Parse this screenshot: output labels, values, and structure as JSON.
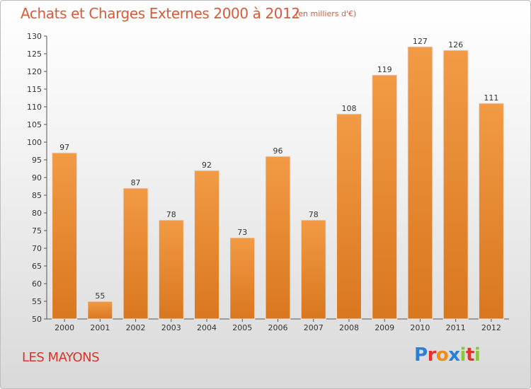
{
  "header": {
    "title": "Achats et Charges Externes 2000 à 2012",
    "subtitle": "(en milliers d'€)"
  },
  "footer": {
    "place": "LES MAYONS",
    "logo": "Proxiti"
  },
  "logo_letters": [
    {
      "char": "P",
      "color": "#2b7fd4"
    },
    {
      "char": "r",
      "color": "#e2342e"
    },
    {
      "char": "o",
      "color": "#f08b16"
    },
    {
      "char": "x",
      "color": "#2b7fd4"
    },
    {
      "char": "i",
      "color": "#8cc43f"
    },
    {
      "char": "t",
      "color": "#e2342e"
    },
    {
      "char": "i",
      "color": "#8cc43f"
    }
  ],
  "colors": {
    "bar": "#f29a45",
    "bar_dark": "#d9771f",
    "title": "#d85a3a",
    "place": "#d0392b"
  },
  "chart_data": {
    "type": "bar",
    "title": "Achats et Charges Externes 2000 à 2012",
    "categories": [
      "2000",
      "2001",
      "2002",
      "2003",
      "2004",
      "2005",
      "2006",
      "2007",
      "2008",
      "2009",
      "2010",
      "2011",
      "2012"
    ],
    "values": [
      97,
      55,
      87,
      78,
      92,
      73,
      96,
      78,
      108,
      119,
      127,
      126,
      111
    ],
    "ylim": [
      50,
      130
    ],
    "yticks": [
      50,
      55,
      60,
      65,
      70,
      75,
      80,
      85,
      90,
      95,
      100,
      105,
      110,
      115,
      120,
      125,
      130
    ],
    "grid": false
  }
}
